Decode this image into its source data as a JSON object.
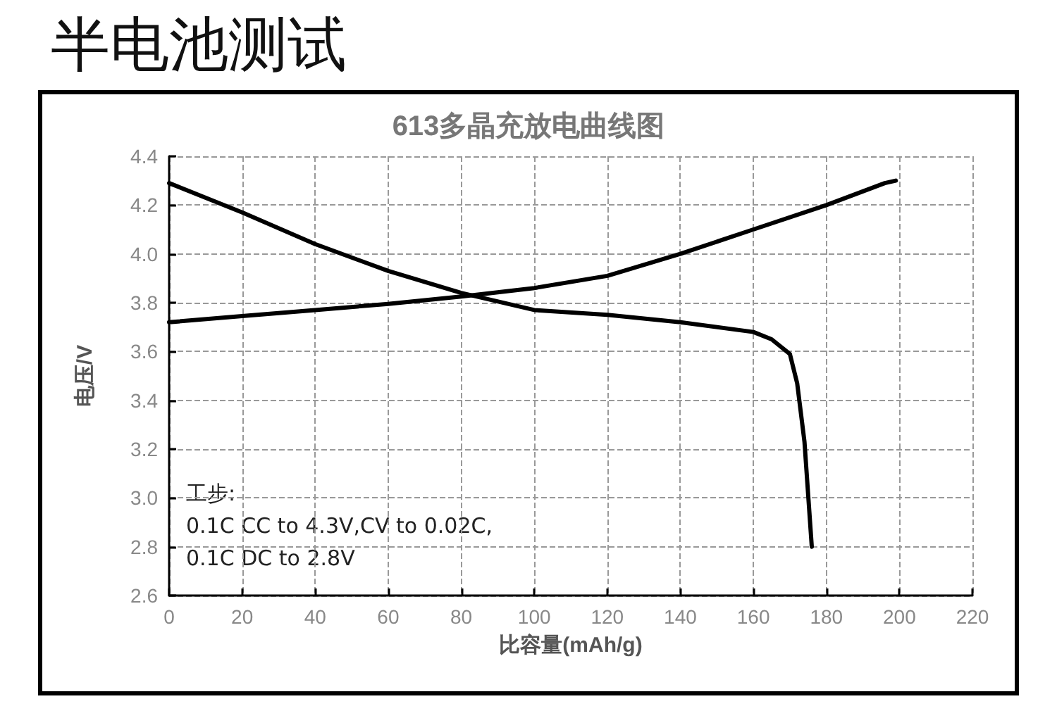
{
  "chart_data": {
    "type": "line",
    "title": "半电池测试",
    "subtitle": "613多晶充放电曲线图",
    "xlabel": "比容量(mAh/g)",
    "ylabel": "电压/V",
    "annotations": [
      "工步:",
      "0.1C CC to 4.3V,CV to 0.02C,",
      "0.1C DC to 2.8V"
    ],
    "series": [
      {
        "color": "#000000",
        "x": [
          0,
          20,
          40,
          60,
          80,
          100,
          120,
          140,
          160,
          180,
          196,
          199
        ],
        "values": [
          3.72,
          3.745,
          3.77,
          3.795,
          3.825,
          3.86,
          3.91,
          4.0,
          4.1,
          4.2,
          4.29,
          4.3
        ]
      },
      {
        "color": "#000000",
        "x": [
          0,
          20,
          40,
          60,
          80,
          100,
          120,
          140,
          160,
          165,
          170,
          172,
          174,
          176
        ],
        "values": [
          4.29,
          4.17,
          4.04,
          3.93,
          3.84,
          3.77,
          3.75,
          3.72,
          3.68,
          3.65,
          3.59,
          3.47,
          3.23,
          2.8
        ]
      }
    ],
    "xlim": [
      0,
      220
    ],
    "xticks": [
      0,
      20,
      40,
      60,
      80,
      100,
      120,
      140,
      160,
      180,
      200,
      220
    ],
    "ylim": [
      2.6,
      4.4
    ],
    "yticks": [
      2.6,
      2.8,
      {
        "value": 3,
        "label": "3.0"
      },
      3.2,
      3.4,
      3.6,
      3.8,
      {
        "value": 4,
        "label": "4.0"
      },
      4.2,
      4.4
    ],
    "grid": true,
    "marker": "none",
    "line_style": "solid"
  }
}
